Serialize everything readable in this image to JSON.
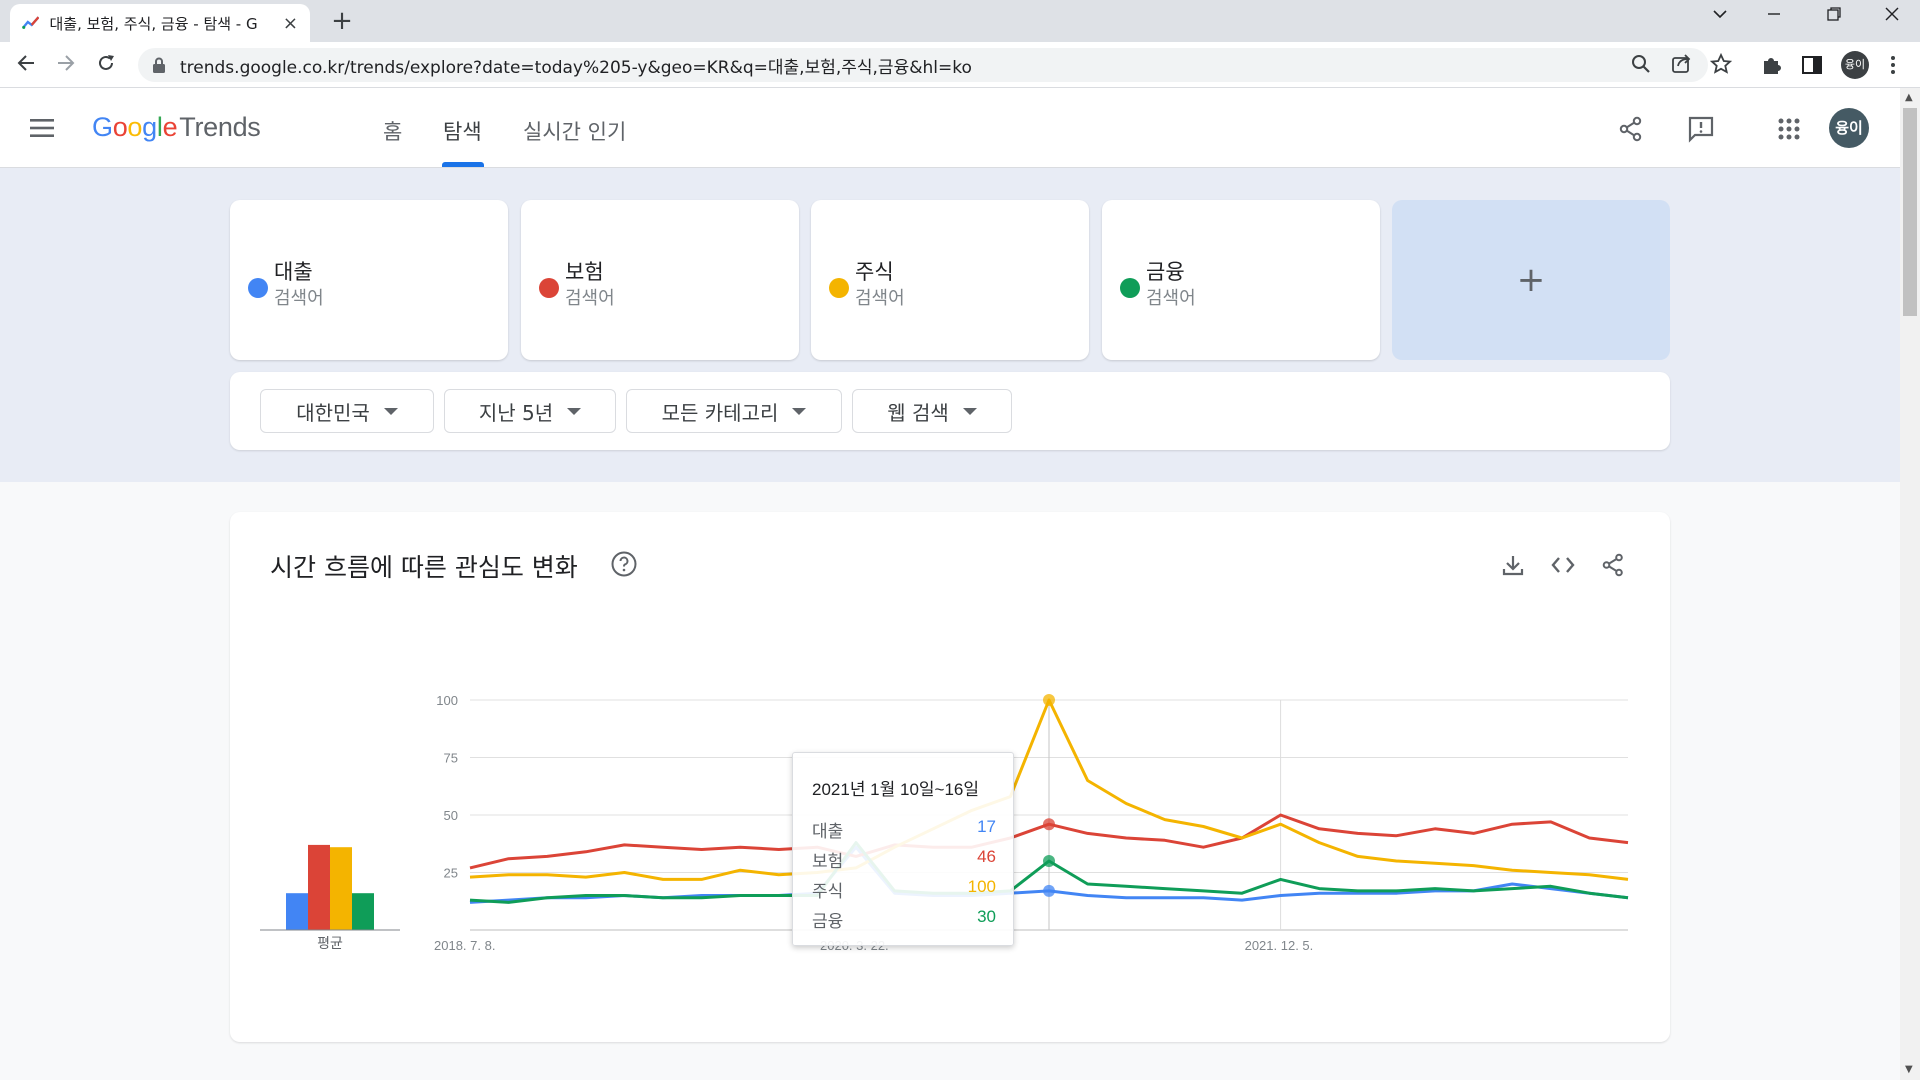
{
  "browser": {
    "tab_title": "대출, 보험, 주식, 금융 - 탐색 - G",
    "url": "trends.google.co.kr/trends/explore?date=today%205-y&geo=KR&q=대출,보험,주식,금융&hl=ko",
    "profile_initials": "융이"
  },
  "header": {
    "logo_google": "Google",
    "logo_trends": "Trends",
    "nav": [
      {
        "label": "홈"
      },
      {
        "label": "탐색"
      },
      {
        "label": "실시간 인기"
      }
    ],
    "avatar_initials": "융이"
  },
  "terms": [
    {
      "name": "대출",
      "sub": "검색어",
      "color": "#4285f4"
    },
    {
      "name": "보험",
      "sub": "검색어",
      "color": "#db4437"
    },
    {
      "name": "주식",
      "sub": "검색어",
      "color": "#f4b400"
    },
    {
      "name": "금융",
      "sub": "검색어",
      "color": "#0f9d58"
    }
  ],
  "add_label": "+",
  "filters": {
    "region": "대한민국",
    "period": "지난 5년",
    "category": "모든 카테고리",
    "search_type": "웹 검색"
  },
  "chart_section": {
    "title": "시간 흐름에 따른 관심도 변화"
  },
  "tooltip": {
    "title": "2021년 1월 10일~16일",
    "rows": [
      {
        "name": "대출",
        "value": "17",
        "color": "#4285f4"
      },
      {
        "name": "보험",
        "value": "46",
        "color": "#db4437"
      },
      {
        "name": "주식",
        "value": "100",
        "color": "#f4b400"
      },
      {
        "name": "금융",
        "value": "30",
        "color": "#0f9d58"
      }
    ]
  },
  "chart_data": {
    "type": "line",
    "title": "시간 흐름에 따른 관심도 변화",
    "x_tick_labels": [
      "2018. 7. 8.",
      "2020. 3. 22.",
      "2021. 12. 5."
    ],
    "y_ticks": [
      25,
      50,
      75,
      100
    ],
    "ylim": [
      0,
      100
    ],
    "grid": true,
    "average_label": "평균",
    "averages": [
      {
        "name": "대출",
        "value": 16
      },
      {
        "name": "보험",
        "value": 37
      },
      {
        "name": "주식",
        "value": 36
      },
      {
        "name": "금융",
        "value": 16
      }
    ],
    "x": [
      "2018-07",
      "2018-09",
      "2018-11",
      "2019-01",
      "2019-03",
      "2019-05",
      "2019-07",
      "2019-09",
      "2019-11",
      "2020-01",
      "2020-03",
      "2020-05",
      "2020-07",
      "2020-09",
      "2020-11",
      "2021-01",
      "2021-03",
      "2021-05",
      "2021-07",
      "2021-09",
      "2021-11",
      "2022-01",
      "2022-03",
      "2022-05",
      "2022-07",
      "2022-09",
      "2022-11",
      "2023-01",
      "2023-03",
      "2023-05",
      "2023-06"
    ],
    "series": [
      {
        "name": "대출",
        "values": [
          12,
          13,
          14,
          14,
          15,
          14,
          15,
          15,
          15,
          16,
          36,
          16,
          15,
          15,
          16,
          17,
          15,
          14,
          14,
          14,
          13,
          15,
          16,
          16,
          16,
          17,
          17,
          20,
          18,
          16,
          14
        ]
      },
      {
        "name": "보험",
        "values": [
          27,
          31,
          32,
          34,
          37,
          36,
          35,
          36,
          35,
          36,
          32,
          37,
          36,
          36,
          40,
          46,
          42,
          40,
          39,
          36,
          40,
          50,
          44,
          42,
          41,
          44,
          42,
          46,
          47,
          40,
          38
        ]
      },
      {
        "name": "주식",
        "values": [
          23,
          24,
          24,
          23,
          25,
          22,
          22,
          26,
          24,
          25,
          27,
          36,
          44,
          52,
          58,
          100,
          65,
          55,
          48,
          45,
          40,
          46,
          38,
          32,
          30,
          29,
          28,
          26,
          25,
          24,
          22
        ]
      },
      {
        "name": "금융",
        "values": [
          13,
          12,
          14,
          15,
          15,
          14,
          14,
          15,
          15,
          15,
          38,
          17,
          16,
          16,
          17,
          30,
          20,
          19,
          18,
          17,
          16,
          22,
          18,
          17,
          17,
          18,
          17,
          18,
          19,
          16,
          14
        ]
      }
    ],
    "highlight_index": 15
  }
}
